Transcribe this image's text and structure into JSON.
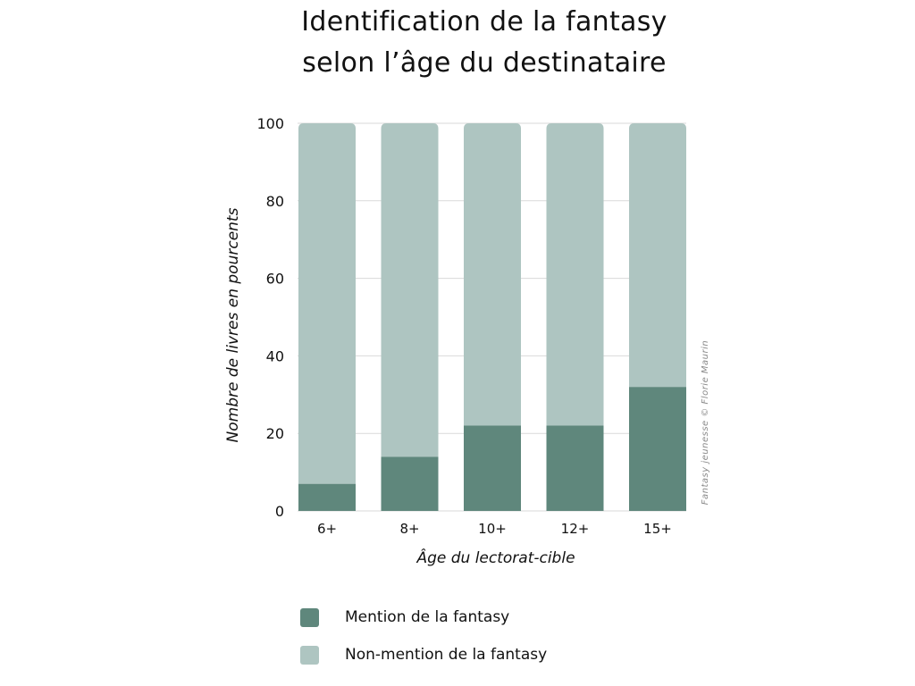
{
  "title_lines": [
    "Identification de la fantasy",
    "selon l’âge du destinataire"
  ],
  "chart_data": {
    "type": "bar",
    "stacked": true,
    "categories": [
      "6+",
      "8+",
      "10+",
      "12+",
      "15+"
    ],
    "series": [
      {
        "name": "Mention de la fantasy",
        "color": "#5f877c",
        "values": [
          7,
          14,
          22,
          22,
          32
        ]
      },
      {
        "name": "Non-mention de la fantasy",
        "color": "#aec5c1",
        "values": [
          93,
          86,
          78,
          78,
          68
        ]
      }
    ],
    "xlabel": "Âge du lectorat-cible",
    "ylabel": "Nombre de livres en pourcents",
    "ylim": [
      0,
      100
    ],
    "yticks": [
      0,
      20,
      40,
      60,
      80,
      100
    ],
    "grid": true,
    "legend_position": "bottom",
    "credit": "Fantasy jeunesse © Florie Maurin"
  }
}
